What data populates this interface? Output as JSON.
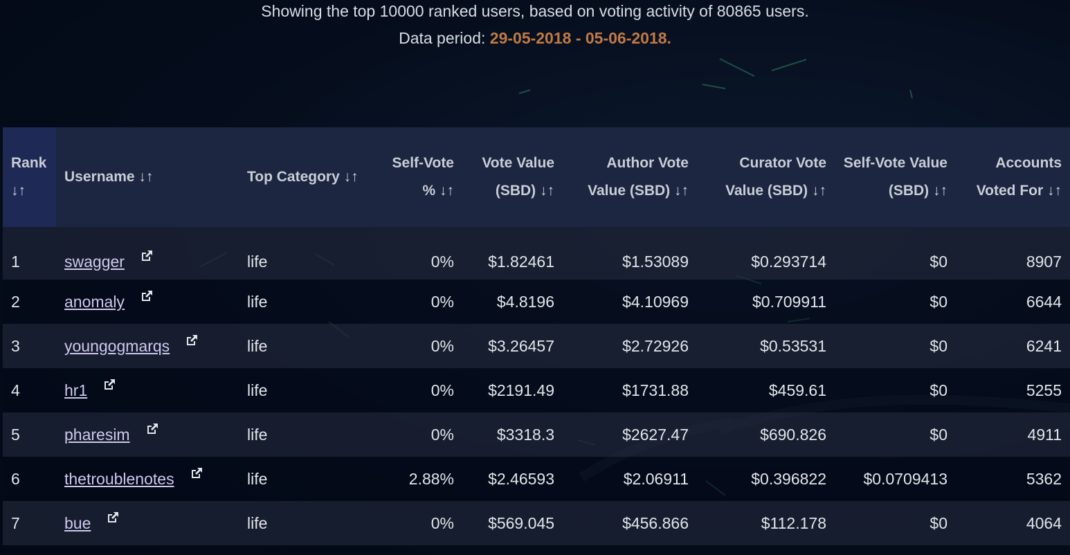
{
  "header": {
    "summary": "Showing the top 10000 ranked users, based on voting activity of 80865 users.",
    "period_label": "Data period:",
    "period_range": "29-05-2018 - 05-06-2018."
  },
  "table": {
    "columns": {
      "rank": "Rank ↓↑",
      "username": "Username ↓↑",
      "top_category": "Top Category ↓↑",
      "self_vote_pct": "Self-Vote % ↓↑",
      "vote_value": "Vote Value (SBD) ↓↑",
      "author_vote_value": "Author Vote Value (SBD) ↓↑",
      "curator_vote_value": "Curator Vote Value (SBD) ↓↑",
      "self_vote_value": "Self-Vote Value (SBD) ↓↑",
      "accounts_voted_for": "Accounts Voted For ↓↑"
    },
    "rows": [
      {
        "rank": "1",
        "username": "swagger",
        "category": "life",
        "self_pct": "0%",
        "vote": "$1.82461",
        "author": "$1.53089",
        "curator": "$0.293714",
        "self_val": "$0",
        "accounts": "8907"
      },
      {
        "rank": "2",
        "username": "anomaly",
        "category": "life",
        "self_pct": "0%",
        "vote": "$4.8196",
        "author": "$4.10969",
        "curator": "$0.709911",
        "self_val": "$0",
        "accounts": "6644"
      },
      {
        "rank": "3",
        "username": "youngogmarqs",
        "category": "life",
        "self_pct": "0%",
        "vote": "$3.26457",
        "author": "$2.72926",
        "curator": "$0.53531",
        "self_val": "$0",
        "accounts": "6241"
      },
      {
        "rank": "4",
        "username": "hr1",
        "category": "life",
        "self_pct": "0%",
        "vote": "$2191.49",
        "author": "$1731.88",
        "curator": "$459.61",
        "self_val": "$0",
        "accounts": "5255"
      },
      {
        "rank": "5",
        "username": "pharesim",
        "category": "life",
        "self_pct": "0%",
        "vote": "$3318.3",
        "author": "$2627.47",
        "curator": "$690.826",
        "self_val": "$0",
        "accounts": "4911"
      },
      {
        "rank": "6",
        "username": "thetroublenotes",
        "category": "life",
        "self_pct": "2.88%",
        "vote": "$2.46593",
        "author": "$2.06911",
        "curator": "$0.396822",
        "self_val": "$0.0709413",
        "accounts": "5362"
      },
      {
        "rank": "7",
        "username": "bue",
        "category": "life",
        "self_pct": "0%",
        "vote": "$569.045",
        "author": "$456.866",
        "curator": "$112.178",
        "self_val": "$0",
        "accounts": "4064"
      }
    ]
  },
  "icons": {
    "external_link": "external-link-icon"
  },
  "colors": {
    "period_accent": "#c07a44",
    "header_bg": "#1c2641",
    "rank_header_bg": "#1e2a55",
    "link": "#cfc8ee"
  }
}
